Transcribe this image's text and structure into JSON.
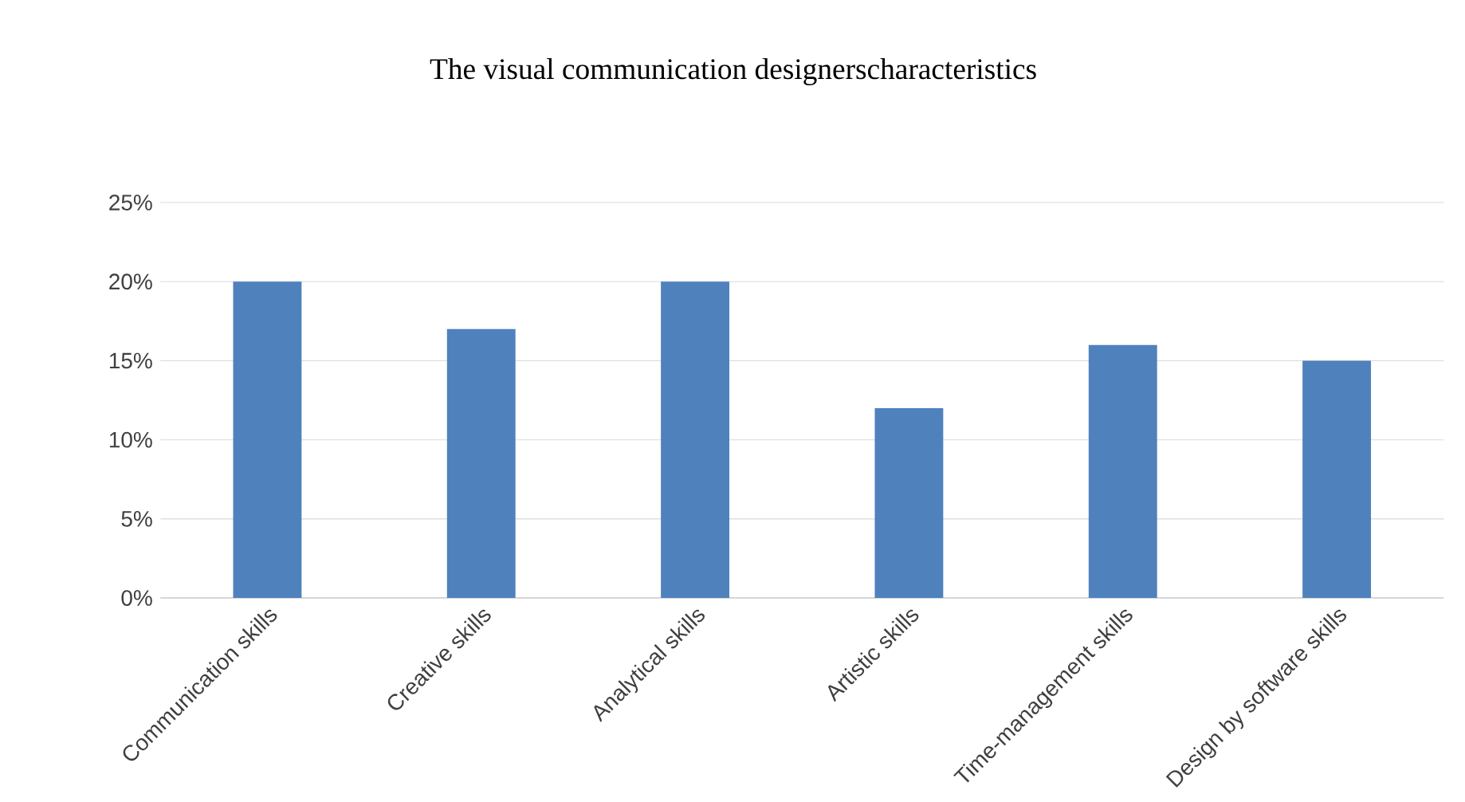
{
  "chart_data": {
    "type": "bar",
    "title": "The visual communication designerscharacteristics",
    "categories": [
      "Communication skills",
      "Creative skills",
      "Analytical skills",
      "Artistic skills",
      "Time-management skills",
      "Design by software skills"
    ],
    "values": [
      20,
      17,
      20,
      12,
      16,
      15
    ],
    "color": "#4f81bd",
    "ylim": [
      0,
      25
    ],
    "yticks": [
      {
        "value": 0,
        "label": "0%"
      },
      {
        "value": 5,
        "label": "5%"
      },
      {
        "value": 10,
        "label": "10%"
      },
      {
        "value": 15,
        "label": "15%"
      },
      {
        "value": 20,
        "label": "20%"
      },
      {
        "value": 25,
        "label": "25%"
      }
    ],
    "grid": "y"
  }
}
